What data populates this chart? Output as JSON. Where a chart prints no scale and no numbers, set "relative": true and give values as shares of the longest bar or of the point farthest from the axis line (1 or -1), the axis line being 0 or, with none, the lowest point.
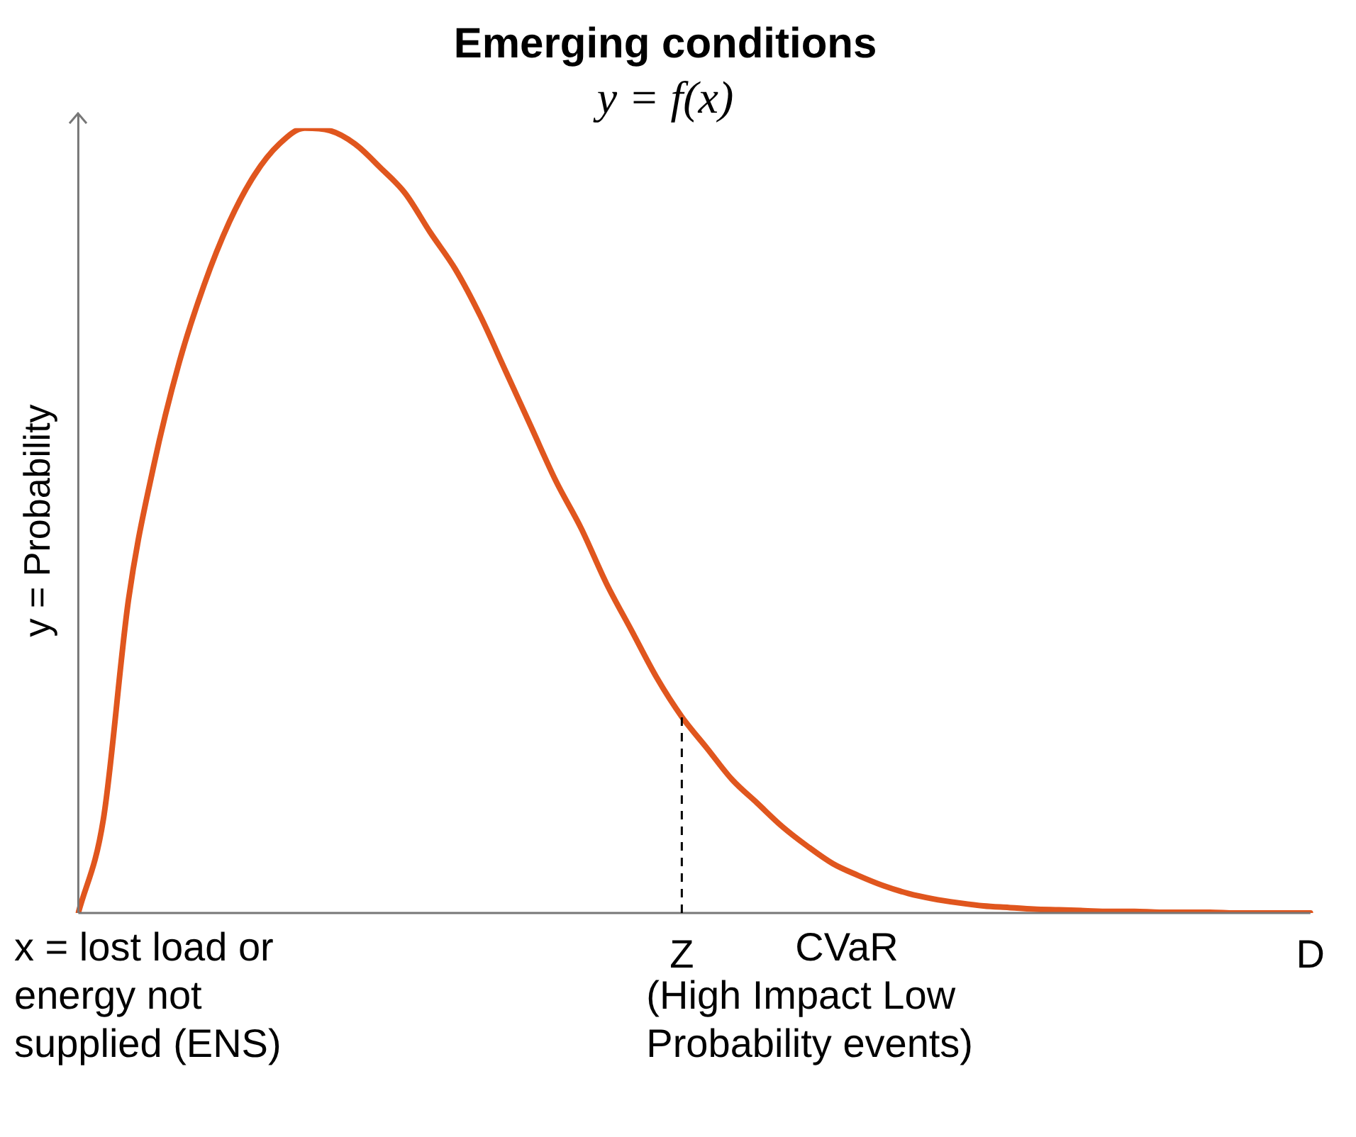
{
  "chart_data": {
    "type": "line",
    "title": "Emerging conditions",
    "subtitle": "y = f(x)",
    "ylabel": "y = Probability",
    "xlabel": "x = lost load or energy not supplied (ENS)",
    "categories": [
      null,
      null,
      null,
      null,
      null,
      null,
      null,
      null,
      null,
      null,
      null,
      null,
      null,
      null,
      null,
      null,
      null,
      null,
      null,
      null,
      null,
      null,
      null,
      null,
      "Z",
      null,
      null,
      null,
      null,
      null,
      null,
      null,
      null,
      null,
      null,
      null,
      null,
      null,
      null,
      null,
      null,
      null,
      null,
      null,
      null,
      null,
      null,
      null,
      null,
      "D"
    ],
    "series": [
      {
        "color": "#e0561e",
        "values": [
          0,
          0.12,
          0.4,
          0.57,
          0.7,
          0.8,
          0.88,
          0.94,
          0.98,
          1,
          0.997,
          0.98,
          0.95,
          0.917,
          0.867,
          0.82,
          0.76,
          0.69,
          0.62,
          0.55,
          0.49,
          0.42,
          0.36,
          0.3,
          0.25,
          0.21,
          0.17,
          0.14,
          0.11,
          0.085,
          0.063,
          0.048,
          0.035,
          0.025,
          0.018,
          0.013,
          0.009,
          0.007,
          0.005,
          0.004,
          0.003,
          0.002,
          0.002,
          0.001,
          0.001,
          0.001,
          0,
          0,
          0,
          0
        ]
      }
    ],
    "relative": true,
    "marker": "none",
    "line_style": "solid",
    "grid": false,
    "legend": false,
    "tick_labels": "x",
    "ref_lines": [
      {
        "axis": "x",
        "value": "Z",
        "line_style": "dashed",
        "color": "#000000"
      }
    ],
    "annotations": [
      "CVaR",
      "(High Impact Low Probability events)"
    ]
  }
}
